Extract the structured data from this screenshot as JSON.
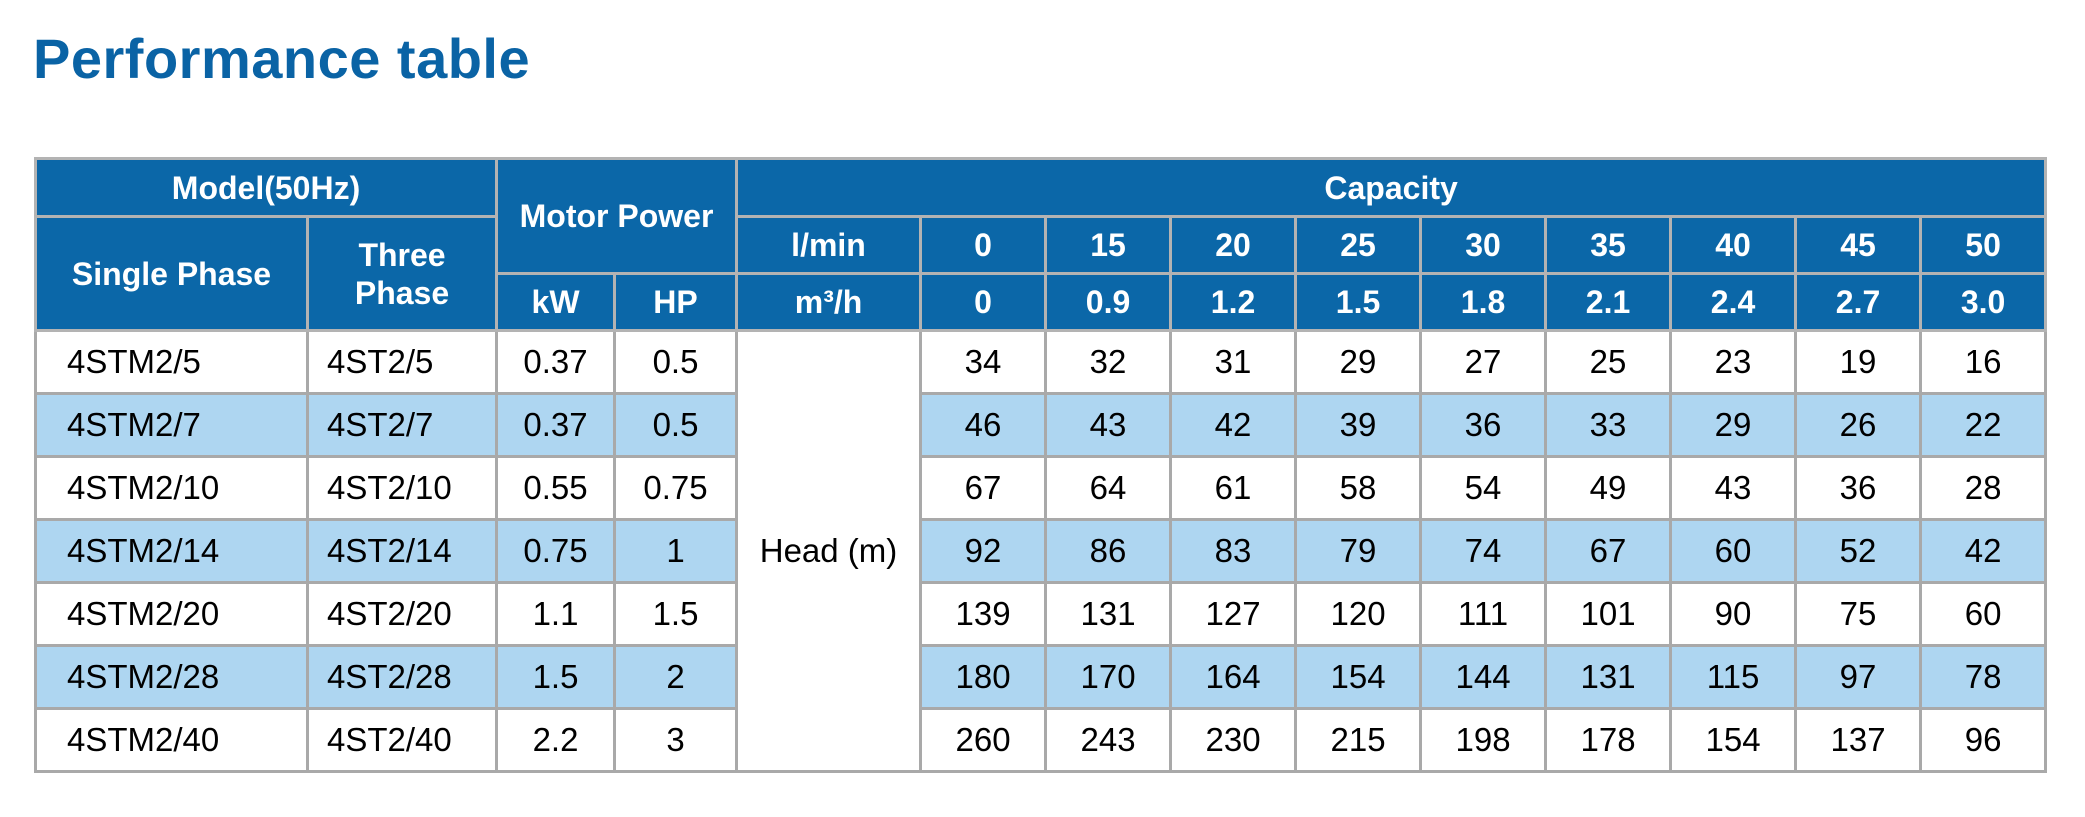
{
  "title": "Performance table",
  "headers": {
    "model": "Model(50Hz)",
    "single_phase": "Single Phase",
    "three_phase": "Three Phase",
    "motor_power": "Motor Power",
    "kw": "kW",
    "hp": "HP",
    "capacity": "Capacity",
    "lmin_label": "l/min",
    "m3h_label": "m³/h",
    "lmin": [
      "0",
      "15",
      "20",
      "25",
      "30",
      "35",
      "40",
      "45",
      "50"
    ],
    "m3h": [
      "0",
      "0.9",
      "1.2",
      "1.5",
      "1.8",
      "2.1",
      "2.4",
      "2.7",
      "3.0"
    ]
  },
  "head_label": "Head (m)",
  "rows": [
    {
      "single": "4STM2/5",
      "three": "4ST2/5",
      "kw": "0.37",
      "hp": "0.5",
      "head": [
        "34",
        "32",
        "31",
        "29",
        "27",
        "25",
        "23",
        "19",
        "16"
      ]
    },
    {
      "single": "4STM2/7",
      "three": "4ST2/7",
      "kw": "0.37",
      "hp": "0.5",
      "head": [
        "46",
        "43",
        "42",
        "39",
        "36",
        "33",
        "29",
        "26",
        "22"
      ]
    },
    {
      "single": "4STM2/10",
      "three": "4ST2/10",
      "kw": "0.55",
      "hp": "0.75",
      "head": [
        "67",
        "64",
        "61",
        "58",
        "54",
        "49",
        "43",
        "36",
        "28"
      ]
    },
    {
      "single": "4STM2/14",
      "three": "4ST2/14",
      "kw": "0.75",
      "hp": "1",
      "head": [
        "92",
        "86",
        "83",
        "79",
        "74",
        "67",
        "60",
        "52",
        "42"
      ]
    },
    {
      "single": "4STM2/20",
      "three": "4ST2/20",
      "kw": "1.1",
      "hp": "1.5",
      "head": [
        "139",
        "131",
        "127",
        "120",
        "111",
        "101",
        "90",
        "75",
        "60"
      ]
    },
    {
      "single": "4STM2/28",
      "three": "4ST2/28",
      "kw": "1.5",
      "hp": "2",
      "head": [
        "180",
        "170",
        "164",
        "154",
        "144",
        "131",
        "115",
        "97",
        "78"
      ]
    },
    {
      "single": "4STM2/40",
      "three": "4ST2/40",
      "kw": "2.2",
      "hp": "3",
      "head": [
        "260",
        "243",
        "230",
        "215",
        "198",
        "178",
        "154",
        "137",
        "96"
      ]
    }
  ],
  "colors": {
    "title": "#0a63a5",
    "header_bg": "#0b67a8",
    "header_text": "#ffffff",
    "alt_row_bg": "#aed6f1",
    "border": "#a9a9a9"
  }
}
